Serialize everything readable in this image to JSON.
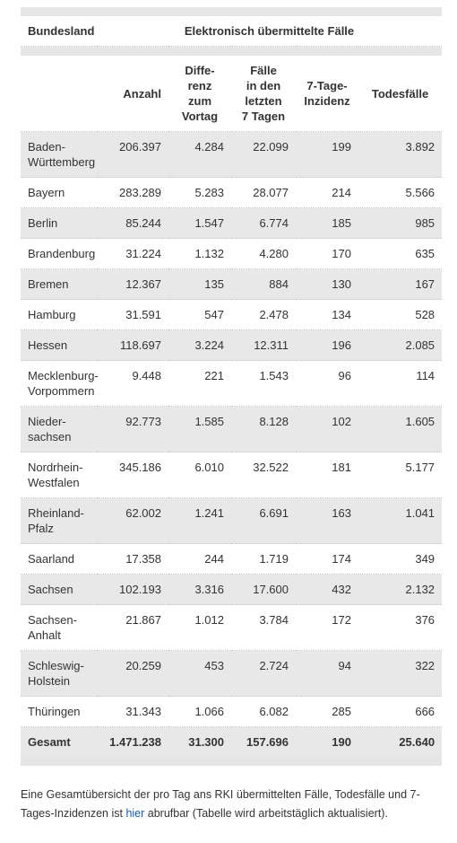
{
  "table": {
    "header_group": [
      "Bundesland",
      "Elektronisch übermittelte Fälle"
    ],
    "columns": [
      "Anzahl",
      "Diffe-\nrenz\nzum\nVortag",
      "Fälle\nin den\nletzten\n7 Tagen",
      "7-Tage-\nInzidenz",
      "Todesfälle"
    ],
    "rows": [
      [
        "Baden-\nWürttemberg",
        "206.397",
        "4.284",
        "22.099",
        "199",
        "3.892"
      ],
      [
        "Bayern",
        "283.289",
        "5.283",
        "28.077",
        "214",
        "5.566"
      ],
      [
        "Berlin",
        "85.244",
        "1.547",
        "6.774",
        "185",
        "985"
      ],
      [
        "Brandenburg",
        "31.224",
        "1.132",
        "4.280",
        "170",
        "635"
      ],
      [
        "Bremen",
        "12.367",
        "135",
        "884",
        "130",
        "167"
      ],
      [
        "Hamburg",
        "31.591",
        "547",
        "2.478",
        "134",
        "528"
      ],
      [
        "Hessen",
        "118.697",
        "3.224",
        "12.311",
        "196",
        "2.085"
      ],
      [
        "Mecklenburg-\nVorpommern",
        "9.448",
        "221",
        "1.543",
        "96",
        "114"
      ],
      [
        "Nieder-\nsachsen",
        "92.773",
        "1.585",
        "8.128",
        "102",
        "1.605"
      ],
      [
        "Nordrhein-\nWestfalen",
        "345.186",
        "6.010",
        "32.522",
        "181",
        "5.177"
      ],
      [
        "Rheinland-\nPfalz",
        "62.002",
        "1.241",
        "6.691",
        "163",
        "1.041"
      ],
      [
        "Saarland",
        "17.358",
        "244",
        "1.719",
        "174",
        "349"
      ],
      [
        "Sachsen",
        "102.193",
        "3.316",
        "17.600",
        "432",
        "2.132"
      ],
      [
        "Sachsen-\nAnhalt",
        "21.867",
        "1.012",
        "3.784",
        "172",
        "376"
      ],
      [
        "Schleswig-\nHolstein",
        "20.259",
        "453",
        "2.724",
        "94",
        "322"
      ],
      [
        "Thüringen",
        "31.343",
        "1.066",
        "6.082",
        "285",
        "666"
      ]
    ],
    "total": [
      "Gesamt",
      "1.471.238",
      "31.300",
      "157.696",
      "190",
      "25.640"
    ]
  },
  "footnote": {
    "before": "Eine Gesamtübersicht der pro Tag ans RKI übermittelten Fälle, Todesfälle und 7-Tages-Inzidenzen ist ",
    "link": "hier",
    "after": " abrufbar (Tabelle wird arbeitstäglich aktualisiert)."
  }
}
